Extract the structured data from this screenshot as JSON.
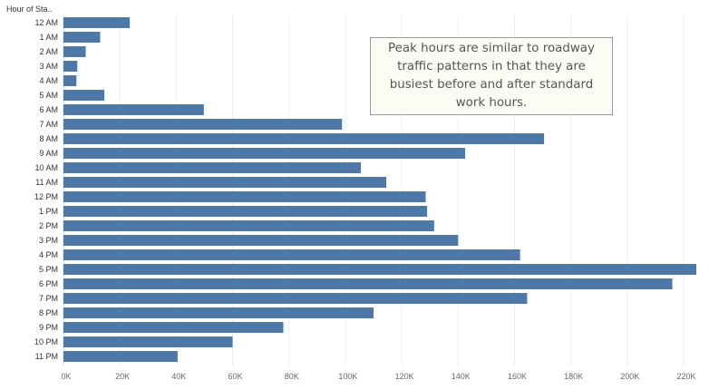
{
  "chart_data": {
    "type": "bar",
    "orientation": "horizontal",
    "y_axis_title": "Hour of Sta..",
    "categories": [
      "12 AM",
      "1 AM",
      "2 AM",
      "3 AM",
      "4 AM",
      "5 AM",
      "6 AM",
      "7 AM",
      "8 AM",
      "9 AM",
      "10 AM",
      "11 AM",
      "12 PM",
      "1 PM",
      "2 PM",
      "3 PM",
      "4 PM",
      "5 PM",
      "6 PM",
      "7 PM",
      "8 PM",
      "9 PM",
      "10 PM",
      "11 PM"
    ],
    "series": [
      {
        "values": [
          23500,
          13000,
          7900,
          4900,
          4600,
          14500,
          49800,
          98800,
          170500,
          142500,
          105500,
          114500,
          128500,
          129000,
          131500,
          140000,
          162000,
          224500,
          216000,
          164500,
          110000,
          78000,
          60000,
          40500
        ]
      }
    ],
    "xlim": [
      0,
      224500
    ],
    "x_ticks": [
      0,
      20000,
      40000,
      60000,
      80000,
      100000,
      120000,
      140000,
      160000,
      180000,
      200000,
      220000
    ],
    "x_tick_labels": [
      "0K",
      "20K",
      "40K",
      "60K",
      "80K",
      "100K",
      "120K",
      "140K",
      "160K",
      "180K",
      "200K",
      "220K"
    ],
    "grid": true,
    "bar_color": "#4e79a7",
    "annotation": "Peak hours are similar to roadway traffic patterns in that they are busiest before and after standard work hours."
  }
}
